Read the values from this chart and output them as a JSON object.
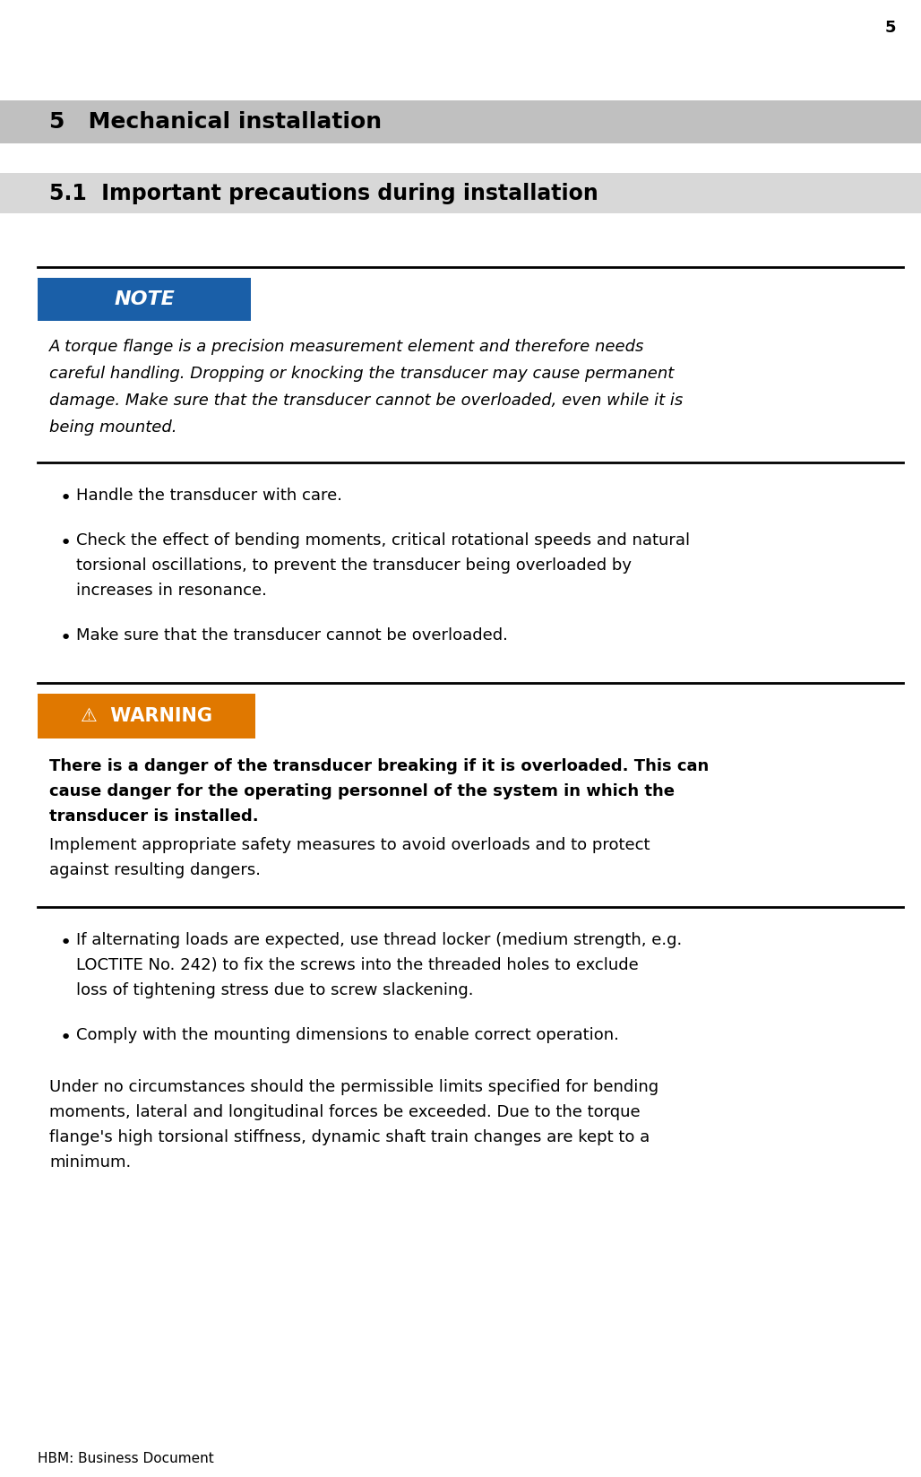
{
  "page_number": "5",
  "footer_text": "HBM: Business Document",
  "section_header": "5   Mechanical installation",
  "subsection_header": "5.1  Important precautions during installation",
  "header_bg_color": "#c0c0c0",
  "subsection_bg_color": "#d8d8d8",
  "note_box_color": "#1a5fa8",
  "note_label": "NOTE",
  "note_text": "A torque flange is a precision measurement element and therefore needs careful handling. Dropping or knocking the transducer may cause permanent damage. Make sure that the transducer cannot be overloaded, even while it is being mounted.",
  "bullet_items_1": [
    "Handle the transducer with care.",
    "Check the effect of bending moments, critical rotational speeds and natural torsional oscillations, to prevent the transducer being overloaded by increases in resonance.",
    "Make sure that the transducer cannot be overloaded."
  ],
  "warning_box_color": "#e07800",
  "warning_label": "⚠  WARNING",
  "warning_bold_text": "There is a danger of the transducer breaking if it is overloaded. This can cause danger for the operating personnel of the system in which the transducer is installed.",
  "warning_normal_text": "Implement appropriate safety measures to avoid overloads and to protect against resulting dangers.",
  "bullet_items_2": [
    "If alternating loads are expected, use thread locker (medium strength, e.g. LOCTITE No. 242) to fix the screws into the threaded holes to exclude loss of tightening stress due to screw slackening.",
    "Comply with the mounting dimensions to enable correct operation."
  ],
  "final_text": "Under no circumstances should the permissible limits specified for bending moments, lateral and longitudinal forces be exceeded. Due to the torque flange's high torsional stiffness, dynamic shaft train changes are kept to a minimum.",
  "bg_color": "#ffffff",
  "text_color": "#000000",
  "line_color": "#000000"
}
